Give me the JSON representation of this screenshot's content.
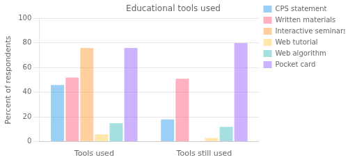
{
  "chart_data": {
    "type": "bar",
    "title": "Educational tools used",
    "ylabel": "Percent of respondents",
    "categories": [
      "Tools used",
      "Tools still used"
    ],
    "series": [
      {
        "name": "CPS statement",
        "values": [
          46,
          18
        ]
      },
      {
        "name": "Written materials",
        "values": [
          52,
          51
        ]
      },
      {
        "name": "Interactive seminars",
        "values": [
          76,
          0
        ]
      },
      {
        "name": "Web tutorial",
        "values": [
          6,
          3
        ]
      },
      {
        "name": "Web algorithm",
        "values": [
          15,
          12
        ]
      },
      {
        "name": "Pocket card",
        "values": [
          76,
          80
        ]
      }
    ],
    "ylim": [
      0,
      100
    ],
    "yticks": [
      0,
      20,
      40,
      60,
      80,
      100
    ],
    "grid": "y",
    "legend": "right"
  }
}
